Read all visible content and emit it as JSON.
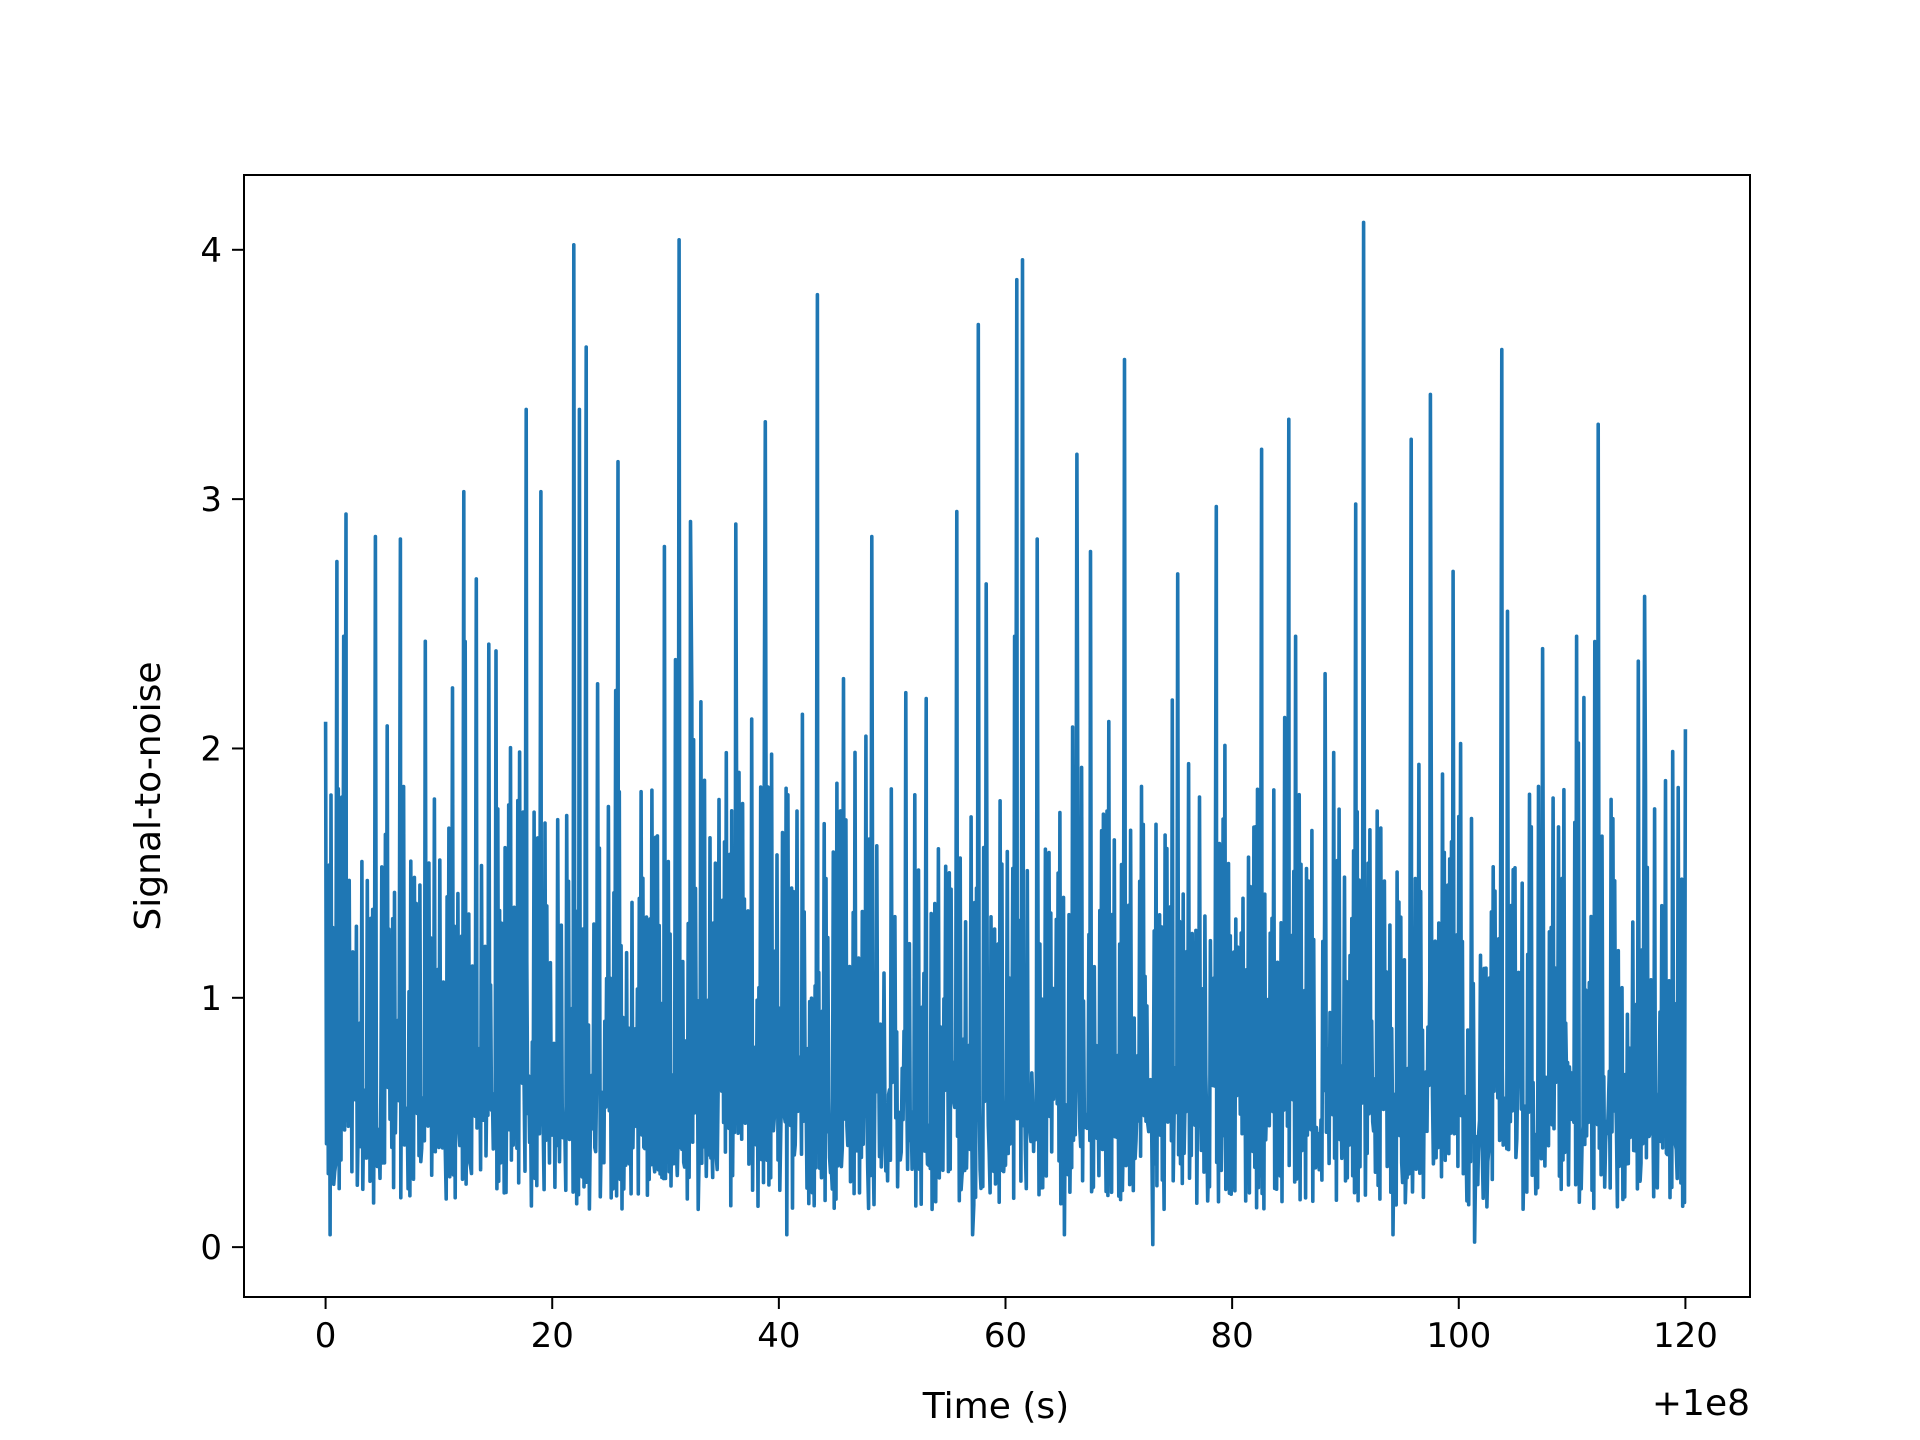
{
  "chart_data": {
    "type": "line",
    "xlabel": "Time (s)",
    "ylabel": "Signal-to-noise",
    "x_offset_label": "+1e8",
    "xlim": [
      -7.2,
      125.7
    ],
    "ylim": [
      -0.2,
      4.3
    ],
    "x_ticks": [
      0,
      20,
      40,
      60,
      80,
      100,
      120
    ],
    "y_ticks": [
      0,
      1,
      2,
      3,
      4
    ],
    "x_tick_labels": [
      "0",
      "20",
      "40",
      "60",
      "80",
      "100",
      "120"
    ],
    "y_tick_labels": [
      "0",
      "1",
      "2",
      "3",
      "4"
    ],
    "grid": false,
    "legend": "none",
    "series": [
      {
        "color": "#1f77b4",
        "x_range": [
          0,
          120
        ],
        "y_range": [
          0.01,
          4.1
        ],
        "x": [
          0,
          0.4,
          1.0,
          1.8,
          4.4,
          6.6,
          8.8,
          12.2,
          13.3,
          17.7,
          19.0,
          21.9,
          22.4,
          23.0,
          25.8,
          29.9,
          31.2,
          32.2,
          36.2,
          38.8,
          40.7,
          43.4,
          45.7,
          48.2,
          53.0,
          55.7,
          57.1,
          57.6,
          58.3,
          61.0,
          61.5,
          62.8,
          65.2,
          66.3,
          67.5,
          70.5,
          73.0,
          75.2,
          78.6,
          82.6,
          85.0,
          88.2,
          90.9,
          91.6,
          94.2,
          95.8,
          97.5,
          99.5,
          101.4,
          103.8,
          104.3,
          107.4,
          110.4,
          112.3,
          116.4,
          120.0
        ],
        "y": [
          2.1,
          0.05,
          2.75,
          2.94,
          2.85,
          2.84,
          2.43,
          3.03,
          2.68,
          3.36,
          3.03,
          4.02,
          3.36,
          3.61,
          3.15,
          2.81,
          4.04,
          2.91,
          2.9,
          3.31,
          0.05,
          3.82,
          2.28,
          2.85,
          2.2,
          2.95,
          0.05,
          3.7,
          2.66,
          3.88,
          3.96,
          2.84,
          0.05,
          3.18,
          2.79,
          3.56,
          0.01,
          2.7,
          2.97,
          3.2,
          3.32,
          2.3,
          2.98,
          4.11,
          0.05,
          3.24,
          3.42,
          2.71,
          0.02,
          3.6,
          2.55,
          2.4,
          2.45,
          3.3,
          2.61,
          2.07
        ]
      }
    ]
  }
}
